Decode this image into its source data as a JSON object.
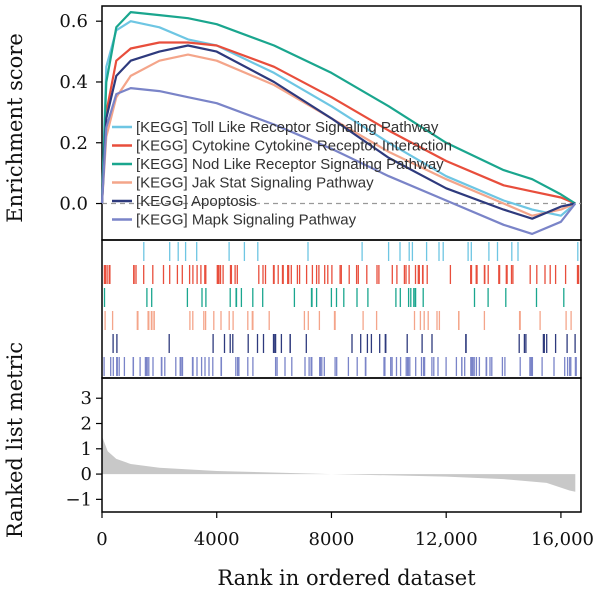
{
  "chart_data": {
    "type": "line",
    "subtype": "gsea-enrichment-multi",
    "enrichment_panel": {
      "ylabel": "Enrichment score",
      "ylim": [
        -0.12,
        0.65
      ],
      "yticks": [
        0.0,
        0.2,
        0.4,
        0.6
      ],
      "ytick_labels": [
        "0.0",
        "0.2",
        "0.4",
        "0.6"
      ],
      "zero_line": "dashed",
      "series": [
        {
          "name": "[KEGG] Toll Like Receptor Signaling Pathway",
          "color": "#6ec6e3",
          "x": [
            0,
            150,
            500,
            1000,
            2000,
            3000,
            4000,
            6000,
            8000,
            10000,
            12000,
            14000,
            15000,
            16000,
            16500
          ],
          "y": [
            0.0,
            0.45,
            0.57,
            0.6,
            0.58,
            0.54,
            0.52,
            0.43,
            0.32,
            0.2,
            0.09,
            0.01,
            -0.02,
            -0.04,
            0.0
          ]
        },
        {
          "name": "[KEGG] Cytokine Cytokine Receptor Interaction",
          "color": "#e84e3c",
          "x": [
            0,
            150,
            500,
            1000,
            2000,
            3000,
            4000,
            6000,
            8000,
            10000,
            12000,
            14000,
            15000,
            16000,
            16500
          ],
          "y": [
            0.0,
            0.3,
            0.47,
            0.51,
            0.53,
            0.53,
            0.52,
            0.45,
            0.35,
            0.24,
            0.14,
            0.06,
            0.04,
            0.02,
            0.0
          ]
        },
        {
          "name": "[KEGG] Nod Like Receptor Signaling Pathway",
          "color": "#1aa68e",
          "x": [
            0,
            150,
            500,
            1000,
            2000,
            3000,
            4000,
            6000,
            8000,
            10000,
            12000,
            14000,
            15000,
            16000,
            16500
          ],
          "y": [
            0.0,
            0.4,
            0.58,
            0.63,
            0.62,
            0.61,
            0.59,
            0.52,
            0.43,
            0.32,
            0.2,
            0.11,
            0.08,
            0.03,
            0.0
          ]
        },
        {
          "name": "[KEGG] Jak Stat Signaling Pathway",
          "color": "#f4a58a",
          "x": [
            0,
            150,
            500,
            1000,
            2000,
            3000,
            4000,
            6000,
            8000,
            10000,
            12000,
            14000,
            15000,
            16000,
            16500
          ],
          "y": [
            0.0,
            0.22,
            0.35,
            0.42,
            0.47,
            0.49,
            0.47,
            0.39,
            0.28,
            0.17,
            0.08,
            0.0,
            -0.04,
            -0.02,
            0.0
          ]
        },
        {
          "name": "[KEGG] Apoptosis",
          "color": "#2e3a7d",
          "x": [
            0,
            150,
            500,
            1000,
            2000,
            3000,
            4000,
            6000,
            8000,
            10000,
            12000,
            14000,
            15000,
            16000,
            16500
          ],
          "y": [
            0.0,
            0.28,
            0.42,
            0.47,
            0.5,
            0.52,
            0.5,
            0.4,
            0.28,
            0.15,
            0.05,
            -0.02,
            -0.05,
            -0.01,
            0.0
          ]
        },
        {
          "name": "[KEGG] Mapk Signaling Pathway",
          "color": "#7a84c8",
          "x": [
            0,
            150,
            500,
            1000,
            2000,
            3000,
            4000,
            6000,
            8000,
            10000,
            12000,
            14000,
            15000,
            16000,
            16500
          ],
          "y": [
            0.0,
            0.25,
            0.36,
            0.38,
            0.37,
            0.35,
            0.33,
            0.26,
            0.18,
            0.09,
            0.01,
            -0.07,
            -0.1,
            -0.06,
            0.0
          ]
        }
      ]
    },
    "hit_panel": {
      "rows": [
        {
          "color": "#6ec6e3",
          "density": 0.05
        },
        {
          "color": "#e84e3c",
          "density": 0.2
        },
        {
          "color": "#1aa68e",
          "density": 0.07
        },
        {
          "color": "#f4a58a",
          "density": 0.09
        },
        {
          "color": "#2e3a7d",
          "density": 0.08
        },
        {
          "color": "#7a84c8",
          "density": 0.22
        }
      ]
    },
    "metric_panel": {
      "ylabel": "Ranked list metric",
      "ylim": [
        -1.5,
        3.8
      ],
      "yticks": [
        -1,
        0,
        1,
        2,
        3
      ],
      "ytick_labels": [
        "−1",
        "0",
        "1",
        "2",
        "3"
      ],
      "fill_color": "#c8c8c8",
      "x": [
        0,
        200,
        500,
        1000,
        2000,
        4000,
        8000,
        12000,
        14000,
        15500,
        16300,
        16500
      ],
      "y": [
        1.5,
        0.9,
        0.6,
        0.4,
        0.25,
        0.12,
        0.0,
        -0.1,
        -0.2,
        -0.35,
        -0.65,
        -0.7
      ]
    },
    "xlabel": "Rank in ordered dataset",
    "xlim": [
      0,
      16700
    ],
    "xticks": [
      0,
      4000,
      8000,
      12000,
      16000
    ],
    "xtick_labels": [
      "0",
      "4000",
      "8000",
      "12,000",
      "16,000"
    ]
  }
}
